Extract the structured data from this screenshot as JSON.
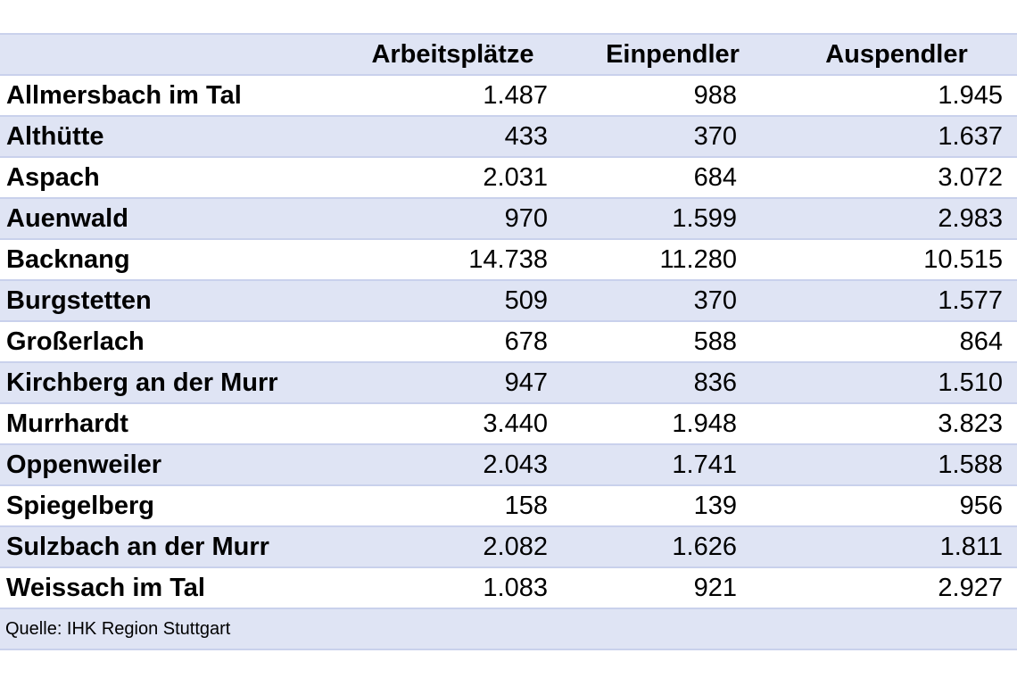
{
  "table": {
    "headers": [
      "",
      "Arbeitsplätze",
      "Einpendler",
      "Auspendler"
    ],
    "rows": [
      {
        "name": "Allmersbach im Tal",
        "arbeitsplaetze": "1.487",
        "einpendler": "988",
        "auspendler": "1.945"
      },
      {
        "name": "Althütte",
        "arbeitsplaetze": "433",
        "einpendler": "370",
        "auspendler": "1.637"
      },
      {
        "name": "Aspach",
        "arbeitsplaetze": "2.031",
        "einpendler": "684",
        "auspendler": "3.072"
      },
      {
        "name": "Auenwald",
        "arbeitsplaetze": "970",
        "einpendler": "1.599",
        "auspendler": "2.983"
      },
      {
        "name": "Backnang",
        "arbeitsplaetze": "14.738",
        "einpendler": "11.280",
        "auspendler": "10.515"
      },
      {
        "name": "Burgstetten",
        "arbeitsplaetze": "509",
        "einpendler": "370",
        "auspendler": "1.577"
      },
      {
        "name": "Großerlach",
        "arbeitsplaetze": "678",
        "einpendler": "588",
        "auspendler": "864"
      },
      {
        "name": "Kirchberg an der Murr",
        "arbeitsplaetze": "947",
        "einpendler": "836",
        "auspendler": "1.510"
      },
      {
        "name": "Murrhardt",
        "arbeitsplaetze": "3.440",
        "einpendler": "1.948",
        "auspendler": "3.823"
      },
      {
        "name": "Oppenweiler",
        "arbeitsplaetze": "2.043",
        "einpendler": "1.741",
        "auspendler": "1.588"
      },
      {
        "name": "Spiegelberg",
        "arbeitsplaetze": "158",
        "einpendler": "139",
        "auspendler": "956"
      },
      {
        "name": "Sulzbach an der Murr",
        "arbeitsplaetze": "2.082",
        "einpendler": "1.626",
        "auspendler": "1.811"
      },
      {
        "name": "Weissach im Tal",
        "arbeitsplaetze": "1.083",
        "einpendler": "921",
        "auspendler": "2.927"
      }
    ],
    "source": "Quelle: IHK Region Stuttgart"
  },
  "colors": {
    "band": "#dfe4f4",
    "border": "#c9d1ec",
    "text": "#000000"
  }
}
